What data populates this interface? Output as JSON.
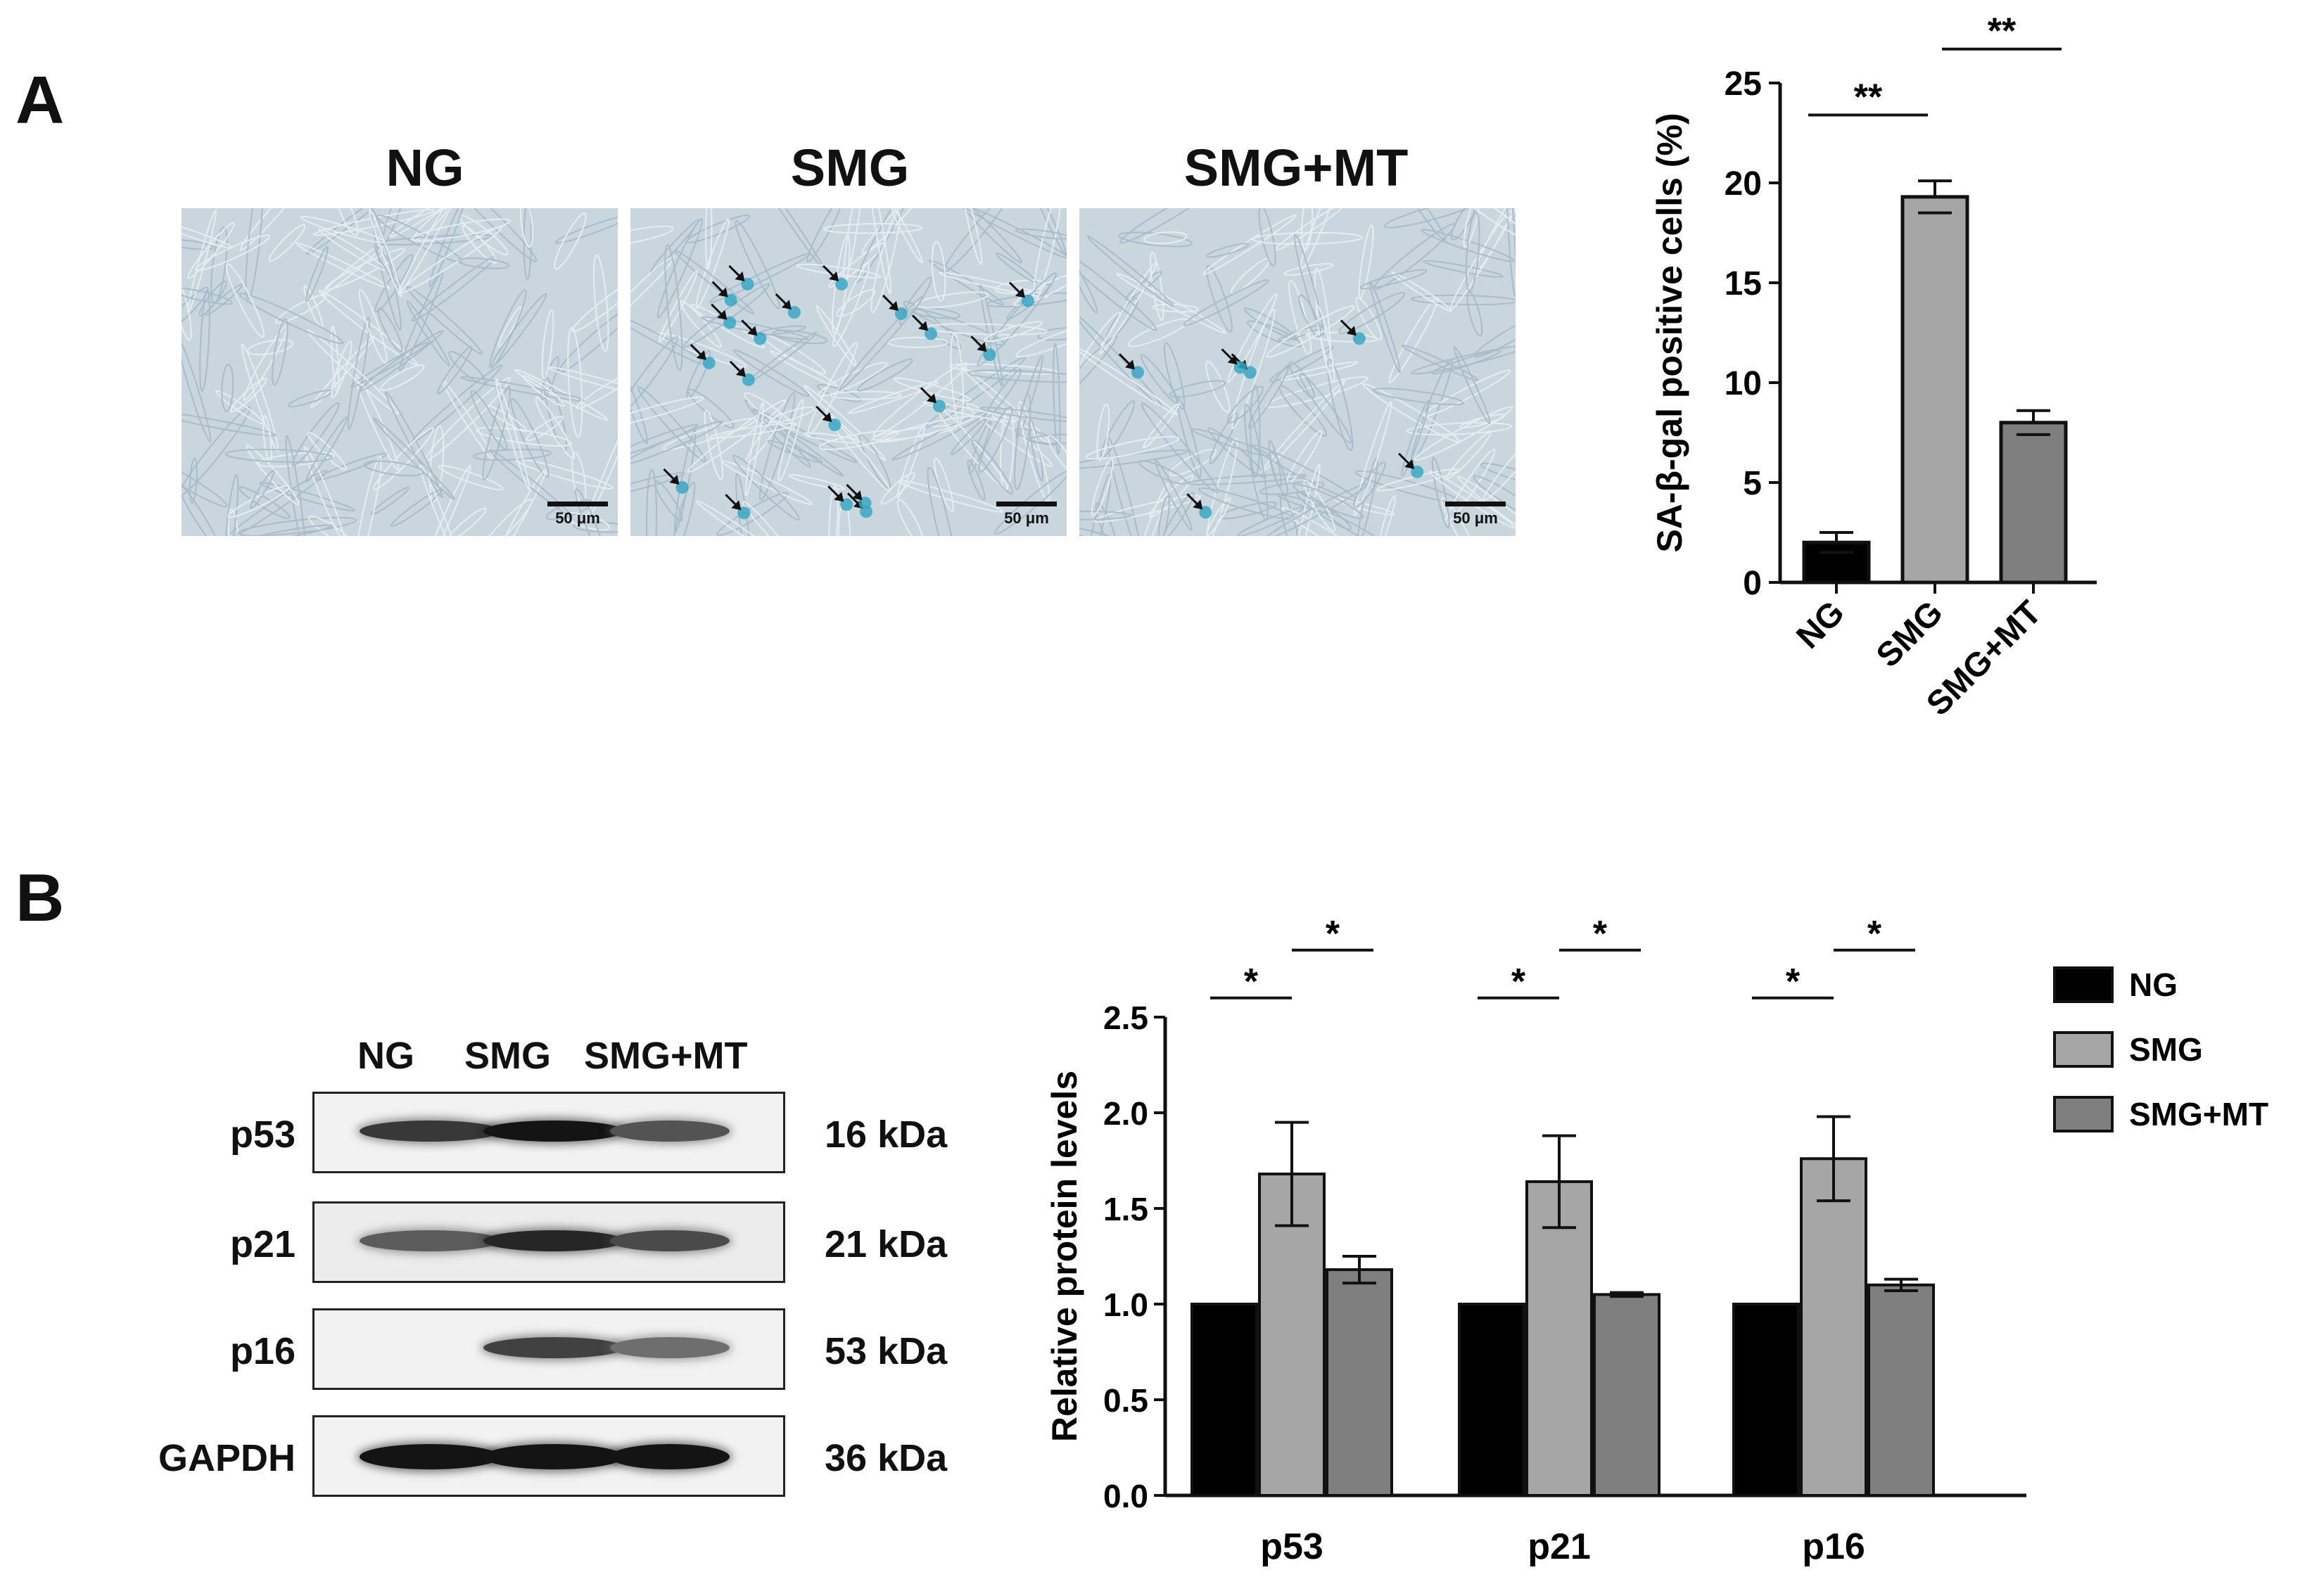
{
  "panel_a": {
    "letter": "A",
    "micrographs": [
      {
        "title": "NG",
        "scale_bar": "50 μm",
        "arrows": 0
      },
      {
        "title": "SMG",
        "scale_bar": "50 μm",
        "arrows": 19
      },
      {
        "title": "SMG+MT",
        "scale_bar": "50 μm",
        "arrows": 6
      }
    ],
    "stain_color": "#3aa7c4",
    "background_color": "#c9d6de"
  },
  "panel_b": {
    "letter": "B",
    "western_blot": {
      "lanes": [
        "NG",
        "SMG",
        "SMG+MT"
      ],
      "rows": [
        {
          "protein": "p53",
          "size": "16 kDa",
          "intensity": [
            0.8,
            1.0,
            0.65
          ]
        },
        {
          "protein": "p21",
          "size": "21 kDa",
          "intensity": [
            0.6,
            0.9,
            0.7
          ]
        },
        {
          "protein": "p16",
          "size": "53 kDa",
          "intensity": [
            0.0,
            0.75,
            0.5
          ]
        },
        {
          "protein": "GAPDH",
          "size": "36 kDa",
          "intensity": [
            1.0,
            1.0,
            1.0
          ]
        }
      ]
    }
  },
  "chart_data": [
    {
      "type": "bar",
      "categories": [
        "NG",
        "SMG",
        "SMG+MT"
      ],
      "values": [
        2.0,
        19.3,
        8.0
      ],
      "errors": [
        0.5,
        0.8,
        0.6
      ],
      "colors": [
        "#000000",
        "#a6a6a6",
        "#7f7f7f"
      ],
      "ylabel": "SA-β-gal positive cells (%)",
      "ylim": [
        0,
        25
      ],
      "yticks": [
        0,
        5,
        10,
        15,
        20,
        25
      ],
      "significance": [
        {
          "from": 0,
          "to": 1,
          "label": "**"
        },
        {
          "from": 1,
          "to": 2,
          "label": "**"
        }
      ]
    },
    {
      "type": "bar",
      "categories": [
        "p53",
        "p21",
        "p16"
      ],
      "series": [
        {
          "name": "NG",
          "color": "#000000",
          "values": [
            1.0,
            1.0,
            1.0
          ],
          "errors": [
            0,
            0,
            0
          ]
        },
        {
          "name": "SMG",
          "color": "#a6a6a6",
          "values": [
            1.68,
            1.64,
            1.76
          ],
          "errors": [
            0.27,
            0.24,
            0.22
          ]
        },
        {
          "name": "SMG+MT",
          "color": "#7f7f7f",
          "values": [
            1.18,
            1.05,
            1.1
          ],
          "errors": [
            0.07,
            0.01,
            0.03
          ]
        }
      ],
      "ylabel": "Relative protein levels",
      "ylim": [
        0,
        2.5
      ],
      "yticks": [
        "0.0",
        "0.5",
        "1.0",
        "1.5",
        "2.0",
        "2.5"
      ],
      "legend_position": "right",
      "significance": [
        {
          "group": 0,
          "from": 0,
          "to": 1,
          "label": "*"
        },
        {
          "group": 0,
          "from": 1,
          "to": 2,
          "label": "*"
        },
        {
          "group": 1,
          "from": 0,
          "to": 1,
          "label": "*"
        },
        {
          "group": 1,
          "from": 1,
          "to": 2,
          "label": "*"
        },
        {
          "group": 2,
          "from": 0,
          "to": 1,
          "label": "*"
        },
        {
          "group": 2,
          "from": 1,
          "to": 2,
          "label": "*"
        }
      ]
    }
  ]
}
